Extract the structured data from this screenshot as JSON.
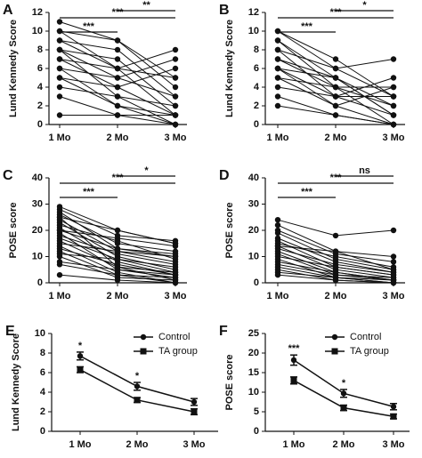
{
  "chart_data": [
    {
      "type": "line",
      "label": "A",
      "ylabel": "Lund Kennedy Score",
      "categories": [
        "1 Mo",
        "2 Mo",
        "3 Mo"
      ],
      "ylim": [
        0,
        12
      ],
      "yticks": [
        0,
        2,
        4,
        6,
        8,
        10,
        12
      ],
      "color": "#111111",
      "marker": "circle",
      "series": [
        {
          "values": [
            11,
            9,
            5
          ]
        },
        {
          "values": [
            10,
            9,
            4
          ]
        },
        {
          "values": [
            10,
            6,
            8
          ]
        },
        {
          "values": [
            9,
            8,
            3
          ]
        },
        {
          "values": [
            9,
            6,
            1
          ]
        },
        {
          "values": [
            8,
            7,
            2
          ]
        },
        {
          "values": [
            8,
            5,
            7
          ]
        },
        {
          "values": [
            8,
            3,
            0
          ]
        },
        {
          "values": [
            7,
            6,
            5
          ]
        },
        {
          "values": [
            7,
            4,
            1
          ]
        },
        {
          "values": [
            6,
            5,
            3
          ]
        },
        {
          "values": [
            6,
            2,
            0
          ]
        },
        {
          "values": [
            5,
            4,
            6
          ]
        },
        {
          "values": [
            5,
            2,
            1
          ]
        },
        {
          "values": [
            4,
            3,
            2
          ]
        },
        {
          "values": [
            3,
            1,
            0
          ]
        },
        {
          "values": [
            1,
            1,
            1
          ]
        }
      ],
      "brackets": [
        {
          "text": "***",
          "from": 0,
          "to": 1
        },
        {
          "text": "***",
          "from": 0,
          "to": 2
        },
        {
          "text": "**",
          "from": 1,
          "to": 2
        }
      ]
    },
    {
      "type": "line",
      "label": "B",
      "ylabel": "Lund Kennedy Score",
      "categories": [
        "1 Mo",
        "2 Mo",
        "3 Mo"
      ],
      "ylim": [
        0,
        12
      ],
      "yticks": [
        0,
        2,
        4,
        6,
        8,
        10,
        12
      ],
      "color": "#111111",
      "marker": "circle",
      "series": [
        {
          "values": [
            10,
            7,
            3
          ]
        },
        {
          "values": [
            10,
            6,
            7
          ]
        },
        {
          "values": [
            9,
            5,
            2
          ]
        },
        {
          "values": [
            9,
            4,
            4
          ]
        },
        {
          "values": [
            8,
            6,
            3
          ]
        },
        {
          "values": [
            8,
            3,
            5
          ]
        },
        {
          "values": [
            7,
            5,
            1
          ]
        },
        {
          "values": [
            7,
            4,
            0
          ]
        },
        {
          "values": [
            6,
            3,
            3
          ]
        },
        {
          "values": [
            6,
            5,
            1
          ]
        },
        {
          "values": [
            5,
            2,
            0
          ]
        },
        {
          "values": [
            5,
            4,
            2
          ]
        },
        {
          "values": [
            4,
            3,
            1
          ]
        },
        {
          "values": [
            3,
            1,
            0
          ]
        },
        {
          "values": [
            2,
            1,
            0
          ]
        },
        {
          "values": [
            6,
            2,
            4
          ]
        }
      ],
      "brackets": [
        {
          "text": "***",
          "from": 0,
          "to": 1
        },
        {
          "text": "***",
          "from": 0,
          "to": 2
        },
        {
          "text": "*",
          "from": 1,
          "to": 2
        }
      ]
    },
    {
      "type": "line",
      "label": "C",
      "ylabel": "POSE score",
      "categories": [
        "1 Mo",
        "2 Mo",
        "3 Mo"
      ],
      "ylim": [
        0,
        40
      ],
      "yticks": [
        0,
        10,
        20,
        30,
        40
      ],
      "color": "#111111",
      "marker": "circle",
      "series": [
        {
          "values": [
            29,
            20,
            15
          ]
        },
        {
          "values": [
            28,
            18,
            16
          ]
        },
        {
          "values": [
            27,
            13,
            10
          ]
        },
        {
          "values": [
            26,
            15,
            12
          ]
        },
        {
          "values": [
            25,
            20,
            15
          ]
        },
        {
          "values": [
            24,
            12,
            8
          ]
        },
        {
          "values": [
            23,
            10,
            5
          ]
        },
        {
          "values": [
            22,
            16,
            9
          ]
        },
        {
          "values": [
            21,
            8,
            3
          ]
        },
        {
          "values": [
            20,
            13,
            11
          ]
        },
        {
          "values": [
            19,
            5,
            2
          ]
        },
        {
          "values": [
            18,
            11,
            7
          ]
        },
        {
          "values": [
            17,
            9,
            4
          ]
        },
        {
          "values": [
            16,
            6,
            1
          ]
        },
        {
          "values": [
            15,
            12,
            10
          ]
        },
        {
          "values": [
            14,
            4,
            0
          ]
        },
        {
          "values": [
            13,
            7,
            3
          ]
        },
        {
          "values": [
            12,
            3,
            2
          ]
        },
        {
          "values": [
            11,
            9,
            6
          ]
        },
        {
          "values": [
            10,
            2,
            1
          ]
        },
        {
          "values": [
            8,
            5,
            3
          ]
        },
        {
          "values": [
            7,
            3,
            0
          ]
        },
        {
          "values": [
            3,
            1,
            0
          ]
        },
        {
          "values": [
            20,
            17,
            14
          ]
        },
        {
          "values": [
            25,
            6,
            4
          ]
        }
      ],
      "brackets": [
        {
          "text": "***",
          "from": 0,
          "to": 1
        },
        {
          "text": "***",
          "from": 0,
          "to": 2
        },
        {
          "text": "*",
          "from": 1,
          "to": 2
        }
      ]
    },
    {
      "type": "line",
      "label": "D",
      "ylabel": "POSE score",
      "categories": [
        "1 Mo",
        "2 Mo",
        "3 Mo"
      ],
      "ylim": [
        0,
        40
      ],
      "yticks": [
        0,
        10,
        20,
        30,
        40
      ],
      "color": "#111111",
      "marker": "circle",
      "series": [
        {
          "values": [
            24,
            18,
            20
          ]
        },
        {
          "values": [
            22,
            12,
            10
          ]
        },
        {
          "values": [
            20,
            11,
            8
          ]
        },
        {
          "values": [
            19,
            9,
            5
          ]
        },
        {
          "values": [
            17,
            8,
            4
          ]
        },
        {
          "values": [
            16,
            6,
            3
          ]
        },
        {
          "values": [
            15,
            10,
            6
          ]
        },
        {
          "values": [
            14,
            5,
            2
          ]
        },
        {
          "values": [
            13,
            7,
            4
          ]
        },
        {
          "values": [
            12,
            4,
            1
          ]
        },
        {
          "values": [
            11,
            3,
            2
          ]
        },
        {
          "values": [
            10,
            6,
            3
          ]
        },
        {
          "values": [
            9,
            2,
            0
          ]
        },
        {
          "values": [
            8,
            4,
            1
          ]
        },
        {
          "values": [
            7,
            3,
            1
          ]
        },
        {
          "values": [
            6,
            2,
            0
          ]
        },
        {
          "values": [
            5,
            1,
            0
          ]
        },
        {
          "values": [
            4,
            2,
            1
          ]
        },
        {
          "values": [
            3,
            1,
            0
          ]
        },
        {
          "values": [
            14,
            12,
            5
          ]
        }
      ],
      "brackets": [
        {
          "text": "***",
          "from": 0,
          "to": 1
        },
        {
          "text": "***",
          "from": 0,
          "to": 2
        },
        {
          "text": "ns",
          "from": 1,
          "to": 2
        }
      ]
    },
    {
      "type": "errorline",
      "label": "E",
      "ylabel": "Lund Kennedy Score",
      "categories": [
        "1 Mo",
        "2 Mo",
        "3 Mo"
      ],
      "ylim": [
        0,
        10
      ],
      "yticks": [
        0,
        2,
        4,
        6,
        8,
        10
      ],
      "legend": "upper right",
      "series": [
        {
          "name": "Control",
          "color": "#111111",
          "marker": "circle",
          "values": [
            7.7,
            4.6,
            3.0
          ],
          "errors": [
            0.4,
            0.4,
            0.35
          ]
        },
        {
          "name": "TA group",
          "color": "#111111",
          "marker": "square",
          "values": [
            6.3,
            3.2,
            2.0
          ],
          "errors": [
            0.3,
            0.25,
            0.3
          ]
        }
      ],
      "annotations": [
        {
          "text": "*",
          "category": 0
        },
        {
          "text": "*",
          "category": 1
        }
      ]
    },
    {
      "type": "errorline",
      "label": "F",
      "ylabel": "POSE score",
      "categories": [
        "1 Mo",
        "2 Mo",
        "3 Mo"
      ],
      "ylim": [
        0,
        25
      ],
      "yticks": [
        0,
        5,
        10,
        15,
        20,
        25
      ],
      "legend": "upper right",
      "series": [
        {
          "name": "Control",
          "color": "#111111",
          "marker": "circle",
          "values": [
            18.2,
            9.7,
            6.3
          ],
          "errors": [
            1.3,
            1.0,
            0.8
          ]
        },
        {
          "name": "TA group",
          "color": "#111111",
          "marker": "square",
          "values": [
            13.0,
            6.0,
            3.8
          ],
          "errors": [
            0.9,
            0.7,
            0.6
          ]
        }
      ],
      "annotations": [
        {
          "text": "***",
          "category": 0
        },
        {
          "text": "*",
          "category": 1
        }
      ]
    }
  ]
}
